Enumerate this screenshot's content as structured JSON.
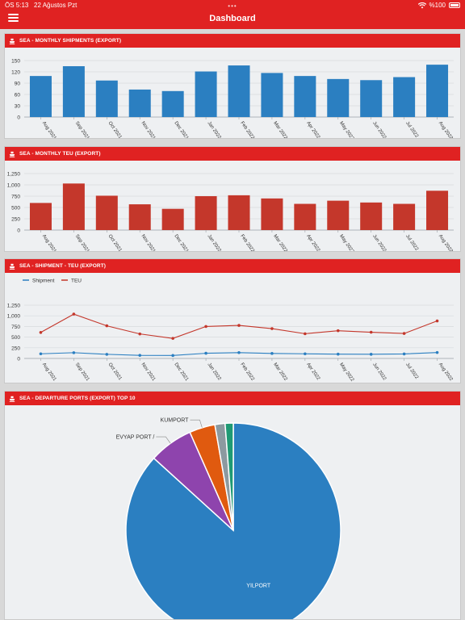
{
  "status_bar": {
    "time": "ÖS 5:13",
    "date": "22 Ağustos Pzt",
    "battery": "%100",
    "wifi_icon": "wifi-icon",
    "battery_icon": "battery-icon"
  },
  "app": {
    "title": "Dashboard",
    "menu_icon": "hamburger-menu-icon"
  },
  "accent_color": "#e02222",
  "chart_data": [
    {
      "type": "bar",
      "title": "SEA - MONTHLY SHIPMENTS (EXPORT)",
      "categories": [
        "Aug 2021",
        "Sep 2021",
        "Oct 2021",
        "Nov 2021",
        "Dec 2021",
        "Jan 2022",
        "Feb 2022",
        "Mar 2022",
        "Apr 2022",
        "May 2022",
        "Jun 2022",
        "Jul 2022",
        "Aug 2022"
      ],
      "values": [
        109,
        135,
        97,
        73,
        69,
        121,
        137,
        117,
        109,
        101,
        98,
        106,
        139
      ],
      "yticks": [
        "0",
        "30",
        "60",
        "90",
        "120",
        "150"
      ],
      "ylim": [
        0,
        150
      ],
      "color": "#2b7fc1",
      "grid": true
    },
    {
      "type": "bar",
      "title": "SEA - MONTHLY TEU (EXPORT)",
      "categories": [
        "Aug 2021",
        "Sep 2021",
        "Oct 2021",
        "Nov 2021",
        "Dec 2021",
        "Jan 2022",
        "Feb 2022",
        "Mar 2022",
        "Apr 2022",
        "May 2022",
        "Jun 2022",
        "Jul 2022",
        "Aug 2022"
      ],
      "values": [
        600,
        1030,
        760,
        570,
        470,
        750,
        770,
        700,
        580,
        650,
        610,
        580,
        870
      ],
      "yticks": [
        "0",
        "250",
        "500",
        "750",
        "1,000",
        "1,250"
      ],
      "ylim": [
        0,
        1250
      ],
      "color": "#c4372b",
      "grid": true
    },
    {
      "type": "line",
      "title": "SEA - SHIPMENT - TEU (EXPORT)",
      "categories": [
        "Aug 2021",
        "Sep 2021",
        "Oct 2021",
        "Nov 2021",
        "Dec 2021",
        "Jan 2022",
        "Feb 2022",
        "Mar 2022",
        "Apr 2022",
        "May 2022",
        "Jun 2022",
        "Jul 2022",
        "Aug 2022"
      ],
      "series": [
        {
          "name": "Shipment",
          "color": "#2b7fc1",
          "values": [
            109,
            135,
            97,
            73,
            69,
            121,
            137,
            117,
            109,
            101,
            98,
            106,
            139
          ]
        },
        {
          "name": "TEU",
          "color": "#c4372b",
          "values": [
            610,
            1040,
            765,
            575,
            470,
            750,
            775,
            700,
            580,
            650,
            615,
            585,
            880
          ]
        }
      ],
      "yticks": [
        "0",
        "250",
        "500",
        "750",
        "1,000",
        "1,250"
      ],
      "ylim": [
        0,
        1250
      ],
      "legend": "top-left",
      "grid": true
    },
    {
      "type": "pie",
      "title": "SEA - DEPARTURE PORTS (EXPORT) TOP 10",
      "slices": [
        {
          "label": "YILPORT",
          "value": 85.0,
          "color": "#2b7fc1"
        },
        {
          "label": "EVYAP PORT /",
          "value": 6.5,
          "color": "#8e44ad"
        },
        {
          "label": "KUMPORT",
          "value": 3.8,
          "color": "#e05a0f"
        },
        {
          "label": "",
          "value": 1.5,
          "color": "#8c9aa0"
        },
        {
          "label": "",
          "value": 1.2,
          "color": "#1f9a74"
        }
      ]
    }
  ]
}
